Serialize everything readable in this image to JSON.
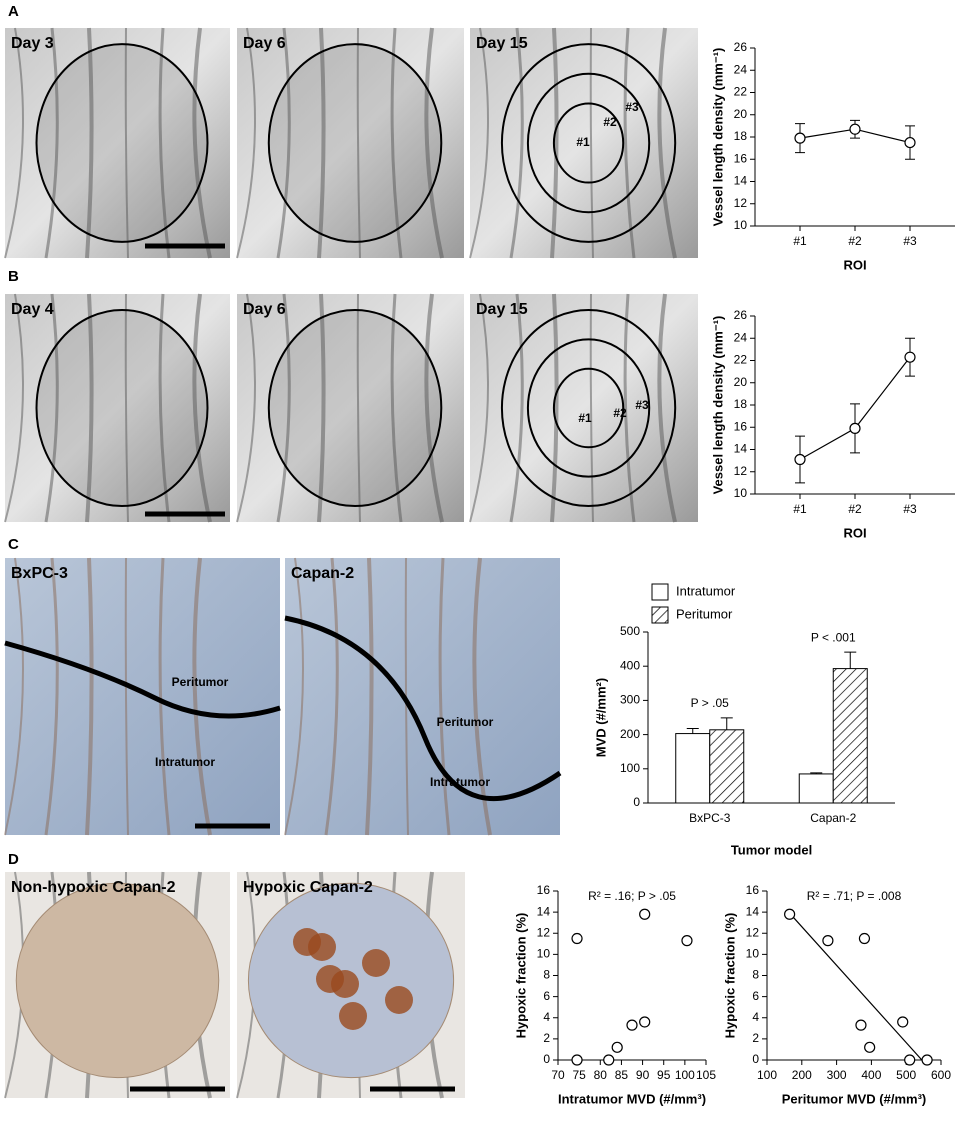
{
  "panel_labels": [
    "A",
    "B",
    "C",
    "D"
  ],
  "images": [
    {
      "label": "Day 3"
    },
    {
      "label": "Day 6"
    },
    {
      "label": "Day 15",
      "regions": [
        "#1",
        "#2",
        "#3"
      ]
    },
    {
      "label": "Day 4"
    },
    {
      "label": "Day 6"
    },
    {
      "label": "Day 15",
      "regions": [
        "#1",
        "#2",
        "#3"
      ]
    },
    {
      "label": "BxPC-3",
      "regions": [
        "Peritumor",
        "Intratumor"
      ]
    },
    {
      "label": "Capan-2",
      "regions": [
        "Peritumor",
        "Intratumor"
      ]
    },
    {
      "label": "Non-hypoxic Capan-2"
    },
    {
      "label": "Hypoxic Capan-2"
    }
  ],
  "chart_data": [
    {
      "type": "line",
      "categories": [
        "#1",
        "#2",
        "#3"
      ],
      "values": [
        17.9,
        18.7,
        17.5
      ],
      "errors": [
        1.3,
        0.8,
        1.5
      ],
      "x_label": "ROI",
      "y_label": "Vessel length density (mm⁻¹)",
      "ylim": [
        10,
        26
      ],
      "yticks": [
        10,
        12,
        14,
        16,
        18,
        20,
        22,
        24,
        26
      ],
      "color": "#000000"
    },
    {
      "type": "line",
      "categories": [
        "#1",
        "#2",
        "#3"
      ],
      "values": [
        13.1,
        15.9,
        22.3
      ],
      "errors": [
        2.1,
        2.2,
        1.7
      ],
      "x_label": "ROI",
      "y_label": "Vessel length density (mm⁻¹)",
      "ylim": [
        10,
        26
      ],
      "yticks": [
        10,
        12,
        14,
        16,
        18,
        20,
        22,
        24,
        26
      ],
      "color": "#000000"
    },
    {
      "type": "bar",
      "categories": [
        "BxPC-3",
        "Capan-2"
      ],
      "series": [
        {
          "name": "Intratumor",
          "color": "#ffffff",
          "hatch": false,
          "values": [
            203,
            85
          ],
          "errors": [
            15,
            3
          ]
        },
        {
          "name": "Peritumor",
          "color": "#ffffff",
          "hatch": true,
          "values": [
            214,
            393
          ],
          "errors": [
            35,
            48
          ]
        }
      ],
      "annotations": [
        "P > .05",
        "P < .001"
      ],
      "x_label": "Tumor model",
      "y_label": "MVD (#/mm²)",
      "ylim": [
        0,
        500
      ],
      "yticks": [
        0,
        100,
        200,
        300,
        400,
        500
      ],
      "legend": "top-left"
    },
    {
      "type": "scatter",
      "x": [
        74.5,
        74.5,
        82,
        84,
        87.5,
        90.5,
        90.5,
        100.5
      ],
      "values": [
        11.5,
        0,
        0,
        1.2,
        3.3,
        3.6,
        13.8,
        11.3
      ],
      "annotation": "R² = .16; P > .05",
      "x_label": "Intratumor MVD (#/mm³)",
      "y_label": "Hypoxic fraction (%)",
      "xlim": [
        70,
        105
      ],
      "xticks": [
        70,
        75,
        80,
        85,
        90,
        95,
        100,
        105
      ],
      "ylim": [
        0,
        16
      ],
      "yticks": [
        0,
        2,
        4,
        6,
        8,
        10,
        12,
        14,
        16
      ]
    },
    {
      "type": "scatter",
      "x": [
        165,
        275,
        380,
        370,
        395,
        490,
        510,
        560
      ],
      "values": [
        13.8,
        11.3,
        11.5,
        3.3,
        1.2,
        3.6,
        0,
        0
      ],
      "trend_line": {
        "x": [
          165,
          545
        ],
        "y": [
          13.9,
          0
        ]
      },
      "annotation": "R² = .71; P = .008",
      "x_label": "Peritumor MVD (#/mm³)",
      "y_label": "Hypoxic fraction (%)",
      "xlim": [
        100,
        600
      ],
      "xticks": [
        100,
        200,
        300,
        400,
        500,
        600
      ],
      "ylim": [
        0,
        16
      ],
      "yticks": [
        0,
        2,
        4,
        6,
        8,
        10,
        12,
        14,
        16
      ]
    }
  ]
}
